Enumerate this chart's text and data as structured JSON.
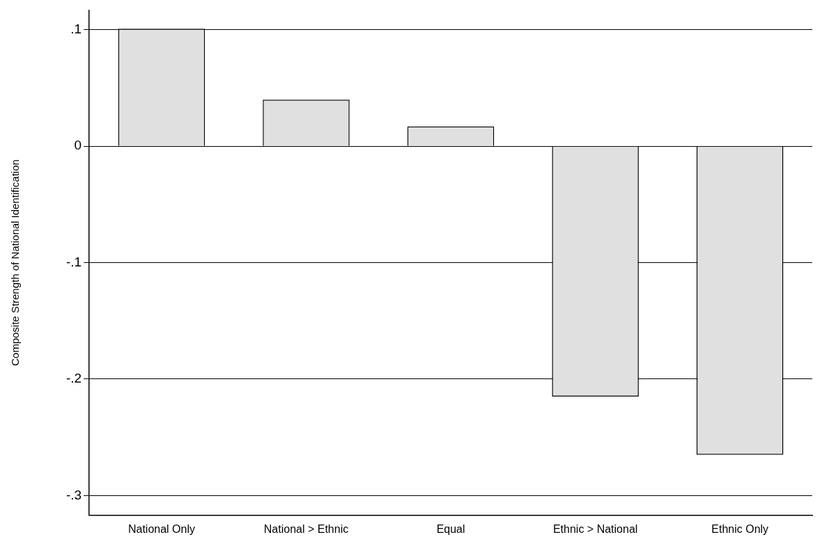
{
  "chart_data": {
    "type": "bar",
    "ylabel": "Composite Strength of National Identification",
    "categories": [
      "National Only",
      "National > Ethnic",
      "Equal",
      "Ethnic > National",
      "Ethnic Only"
    ],
    "values": [
      0.101,
      0.04,
      0.017,
      -0.215,
      -0.265
    ],
    "color": "#e0e0e0",
    "ylim": [
      -0.317,
      0.117
    ],
    "yticks": [
      {
        "value": 0.1,
        "label": ".1"
      },
      0,
      {
        "value": -0.1,
        "label": "-.1"
      },
      {
        "value": -0.2,
        "label": "-.2"
      },
      {
        "value": -0.3,
        "label": "-.3"
      }
    ],
    "grid": "y"
  }
}
